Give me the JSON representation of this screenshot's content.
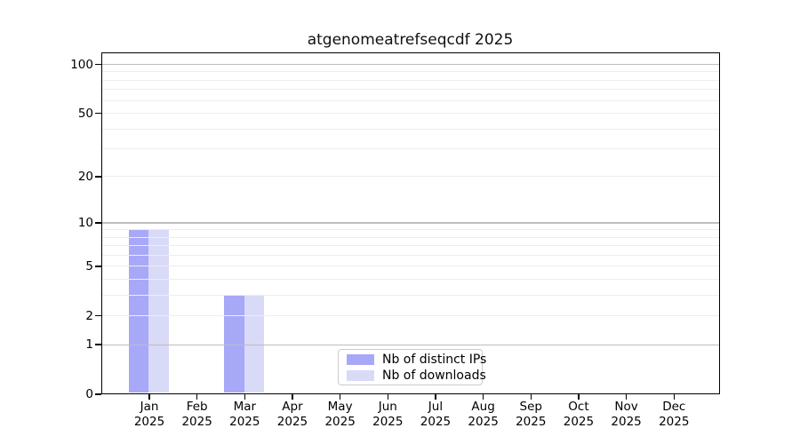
{
  "chart_data": {
    "type": "bar",
    "title": "atgenomeatrefseqcdf 2025",
    "year_label": "2025",
    "months": [
      "Jan",
      "Feb",
      "Mar",
      "Apr",
      "May",
      "Jun",
      "Jul",
      "Aug",
      "Sep",
      "Oct",
      "Nov",
      "Dec"
    ],
    "categories": [
      "Jan 2025",
      "Feb 2025",
      "Mar 2025",
      "Apr 2025",
      "May 2025",
      "Jun 2025",
      "Jul 2025",
      "Aug 2025",
      "Sep 2025",
      "Oct 2025",
      "Nov 2025",
      "Dec 2025"
    ],
    "series": [
      {
        "name": "Nb of distinct IPs",
        "color": "#a8a8f8",
        "values": [
          9,
          0,
          3,
          0,
          0,
          0,
          0,
          0,
          0,
          0,
          0,
          0
        ]
      },
      {
        "name": "Nb of downloads",
        "color": "#d9d9f8",
        "values": [
          9,
          0,
          3,
          0,
          0,
          0,
          0,
          0,
          0,
          0,
          0,
          0
        ]
      }
    ],
    "yscale": "log10(1+v)",
    "ylim": [
      0,
      116
    ],
    "yticks": [
      0,
      1,
      2,
      5,
      10,
      20,
      50,
      100
    ],
    "grid": {
      "major_at": [
        1,
        10,
        100
      ],
      "minor_at": [
        2,
        3,
        4,
        5,
        6,
        7,
        8,
        9,
        20,
        30,
        40,
        50,
        60,
        70,
        80,
        90
      ],
      "major_color": "#bdbdbd",
      "minor_color": "#ededed"
    },
    "legend_position": "lower center",
    "colors": {
      "axes": "#000000",
      "background": "#ffffff"
    }
  }
}
